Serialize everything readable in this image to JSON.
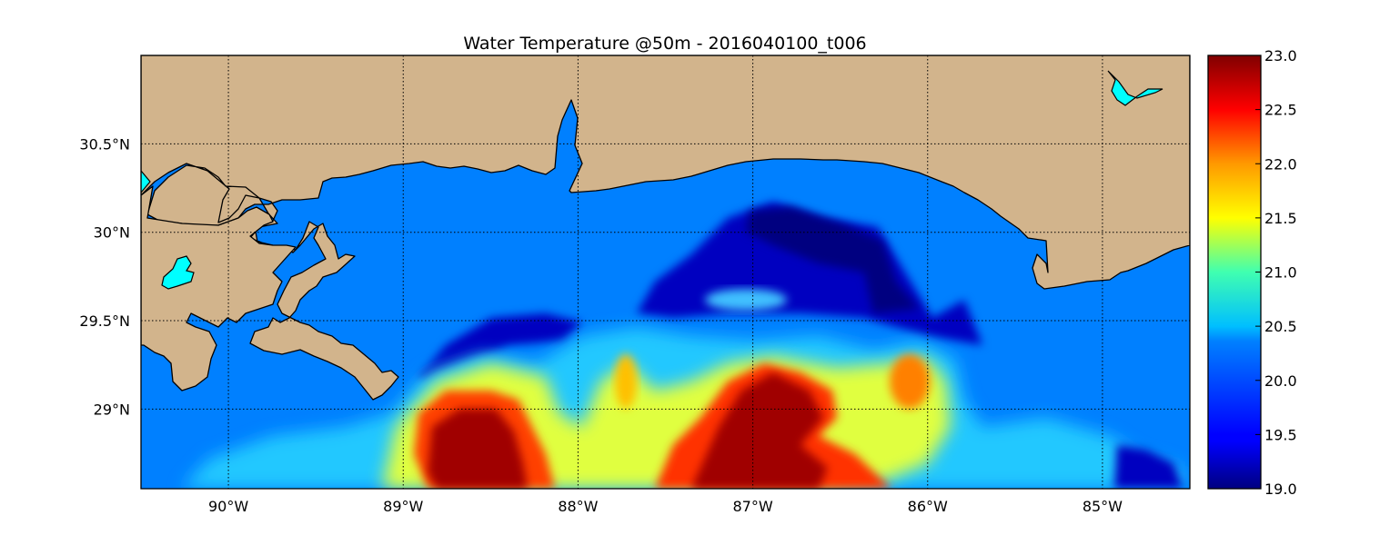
{
  "title": "Water Temperature @50m - 2016040100_t006",
  "map": {
    "lon_range": [
      -90.5,
      -84.5
    ],
    "lat_range": [
      28.55,
      31.0
    ],
    "grid": "dotted",
    "lat_labels": [
      "30.5°N",
      "30°N",
      "29.5°N",
      "29°N"
    ],
    "lat_values": [
      30.5,
      30.0,
      29.5,
      29.0
    ],
    "lon_labels": [
      "90°W",
      "89°W",
      "88°W",
      "87°W",
      "86°W",
      "85°W"
    ],
    "lon_values": [
      -90,
      -89,
      -88,
      -87,
      -86,
      -85
    ],
    "land_color": "#D2B48C",
    "ocean_fill_color": "#0080FF",
    "lake_color": "#00FFFF"
  },
  "colorbar": {
    "min": 19.0,
    "max": 23.0,
    "colormap": "jet",
    "labels": [
      "23.0",
      "22.5",
      "22.0",
      "21.5",
      "21.0",
      "20.5",
      "20.0",
      "19.5",
      "19.0"
    ],
    "values": [
      23.0,
      22.5,
      22.0,
      21.5,
      21.0,
      20.5,
      20.0,
      19.5,
      19.0
    ]
  }
}
